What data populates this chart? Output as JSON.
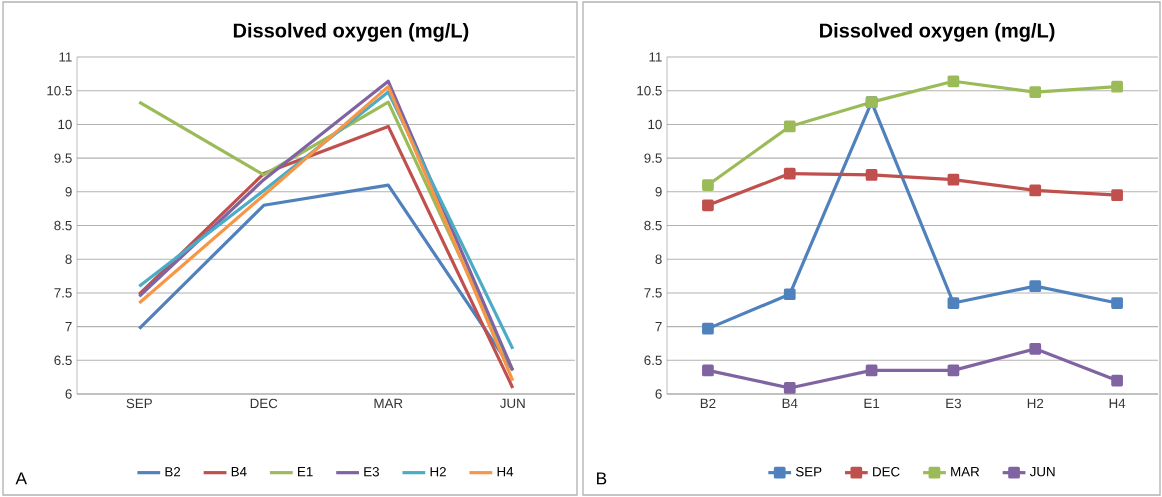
{
  "chart_data": [
    {
      "type": "line",
      "title": "Dissolved oxygen (mg/L)",
      "categories": [
        "SEP",
        "DEC",
        "MAR",
        "JUN"
      ],
      "ylim": [
        6,
        11
      ],
      "yticks": [
        6,
        6.5,
        7,
        7.5,
        8,
        8.5,
        9,
        9.5,
        10,
        10.5,
        11
      ],
      "grid": "y",
      "legend": "bottom",
      "marker": "none",
      "annotations": [
        "A"
      ],
      "series": [
        {
          "name": "B2",
          "color": "#4f81bd",
          "values": [
            6.97,
            8.8,
            9.1,
            6.35
          ]
        },
        {
          "name": "B4",
          "color": "#c0504d",
          "values": [
            7.48,
            9.27,
            9.97,
            6.09
          ]
        },
        {
          "name": "E1",
          "color": "#9bbb59",
          "values": [
            10.33,
            9.25,
            10.33,
            6.35
          ]
        },
        {
          "name": "E3",
          "color": "#8064a2",
          "values": [
            7.45,
            9.18,
            10.64,
            6.35
          ]
        },
        {
          "name": "H2",
          "color": "#4bacc6",
          "values": [
            7.6,
            9.02,
            10.48,
            6.67
          ]
        },
        {
          "name": "H4",
          "color": "#f79646",
          "values": [
            7.35,
            8.95,
            10.56,
            6.2
          ]
        }
      ]
    },
    {
      "type": "line",
      "title": "Dissolved oxygen (mg/L)",
      "categories": [
        "B2",
        "B4",
        "E1",
        "E3",
        "H2",
        "H4"
      ],
      "ylim": [
        6,
        11
      ],
      "yticks": [
        6,
        6.5,
        7,
        7.5,
        8,
        8.5,
        9,
        9.5,
        10,
        10.5,
        11
      ],
      "grid": "y",
      "legend": "bottom",
      "marker": "square",
      "annotations": [
        "B"
      ],
      "series": [
        {
          "name": "SEP",
          "color": "#4f81bd",
          "values": [
            6.97,
            7.48,
            10.33,
            7.35,
            7.6,
            7.35
          ]
        },
        {
          "name": "DEC",
          "color": "#c0504d",
          "values": [
            8.8,
            9.27,
            9.25,
            9.18,
            9.02,
            8.95
          ]
        },
        {
          "name": "MAR",
          "color": "#9bbb59",
          "values": [
            9.1,
            9.97,
            10.33,
            10.64,
            10.48,
            10.56
          ]
        },
        {
          "name": "JUN",
          "color": "#8064a2",
          "values": [
            6.35,
            6.09,
            6.35,
            6.35,
            6.67,
            6.2
          ]
        }
      ]
    }
  ]
}
